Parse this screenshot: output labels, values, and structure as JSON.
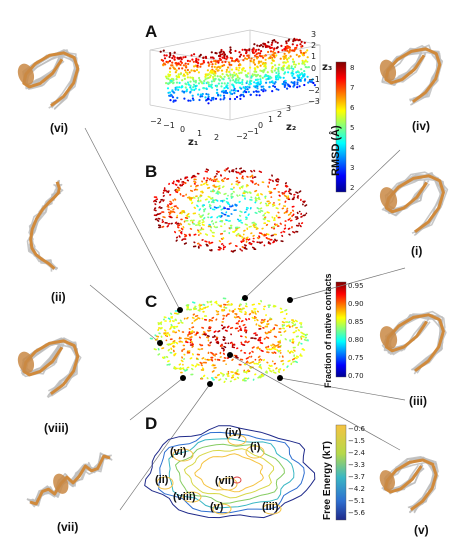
{
  "panels": {
    "A": "A",
    "B": "B",
    "C": "C",
    "D": "D"
  },
  "axis_a": {
    "x_label": "z₁",
    "y_label": "z₂",
    "z_label": "z₃",
    "x_ticks": [
      "−2",
      "−1",
      "0",
      "1",
      "2"
    ],
    "y_ticks": [
      "−2",
      "−1",
      "0",
      "1",
      "2",
      "3"
    ],
    "z_ticks": [
      "3",
      "2",
      "1",
      "0",
      "−1",
      "−2",
      "−3"
    ]
  },
  "colorbar_rmsd": {
    "label": "RMSD (Å)",
    "ticks": [
      "8",
      "7",
      "6",
      "5",
      "4",
      "3",
      "2"
    ]
  },
  "colorbar_contacts": {
    "label": "Fraction of native contacts",
    "ticks": [
      "0.95",
      "0.90",
      "0.85",
      "0.80",
      "0.75",
      "0.70"
    ]
  },
  "colorbar_energy": {
    "label": "Free Energy (kT)",
    "ticks": [
      "−0.6",
      "−1.5",
      "−2.4",
      "−3.3",
      "−3.7",
      "−4.2",
      "−5.1",
      "−5.6"
    ]
  },
  "structure_labels": {
    "vi": "(vi)",
    "iv": "(iv)",
    "i": "(i)",
    "ii": "(ii)",
    "iii": "(iii)",
    "viii": "(viii)",
    "vii": "(vii)",
    "v": "(v)"
  },
  "energy_map_labels": {
    "iv": "(iv)",
    "vi": "(vi)",
    "i": "(i)",
    "ii": "(ii)",
    "vii": "(vii)",
    "viii": "(viii)",
    "v": "(v)",
    "iii": "(iii)"
  }
}
